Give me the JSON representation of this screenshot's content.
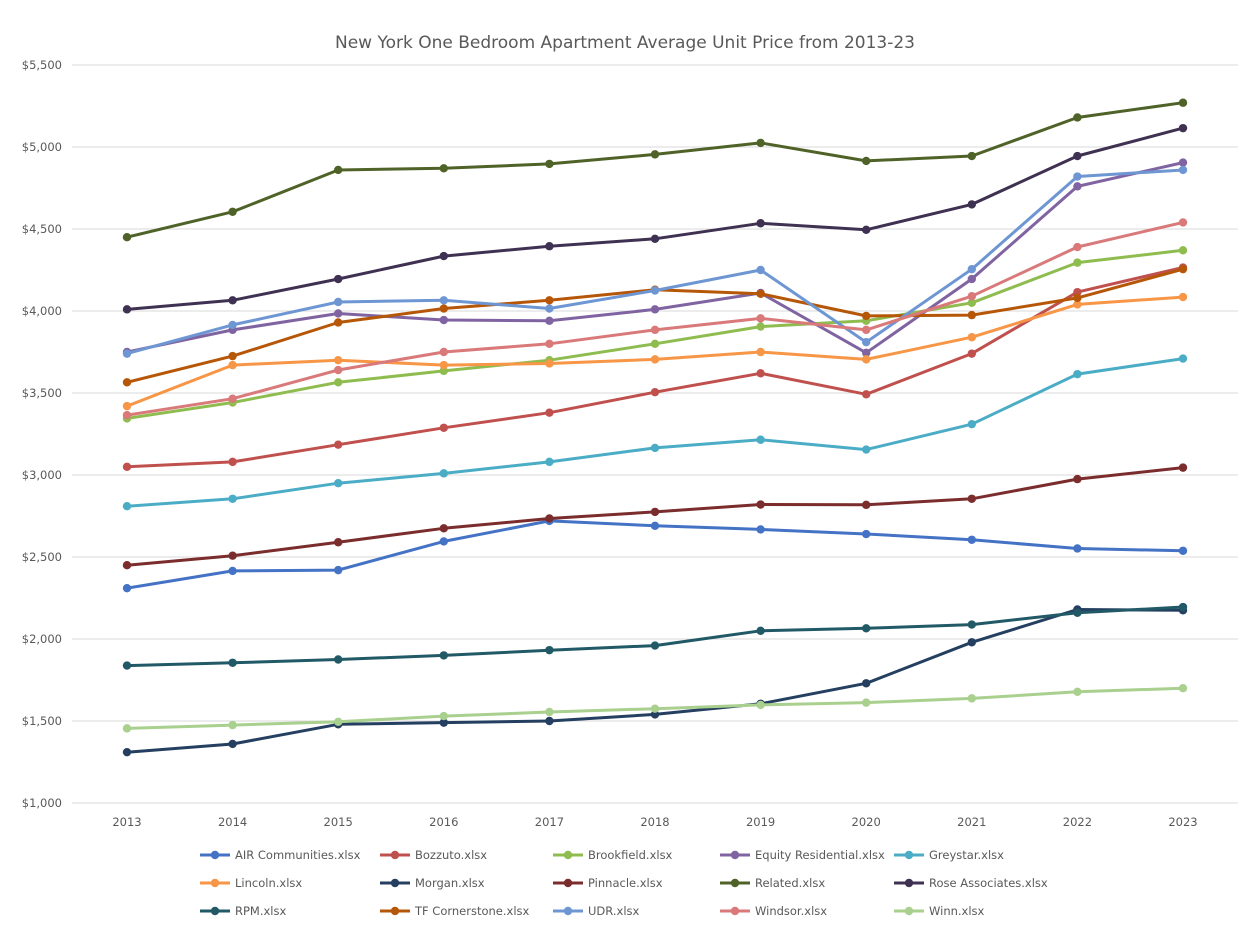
{
  "chart_data": {
    "type": "line",
    "title": "New York One Bedroom Apartment Average Unit Price from 2013-23",
    "xlabel": "",
    "ylabel": "",
    "x": [
      "2013",
      "2014",
      "2015",
      "2016",
      "2017",
      "2018",
      "2019",
      "2020",
      "2021",
      "2022",
      "2023"
    ],
    "ylim": [
      1000,
      5500
    ],
    "yticks": [
      1000,
      1500,
      2000,
      2500,
      3000,
      3500,
      4000,
      4500,
      5000,
      5500
    ],
    "ytick_labels": [
      "$1,000",
      "$1,500",
      "$2,000",
      "$2,500",
      "$3,000",
      "$3,500",
      "$4,000",
      "$4,500",
      "$5,000",
      "$5,500"
    ],
    "grid": true,
    "legend_position": "bottom",
    "series": [
      {
        "name": "AIR Communities.xlsx",
        "color": "#4472c4",
        "values": [
          2310,
          2415,
          2420,
          2595,
          2720,
          2690,
          2668,
          2640,
          2605,
          2552,
          2538
        ]
      },
      {
        "name": "Bozzuto.xlsx",
        "color": "#c0504d",
        "values": [
          3050,
          3080,
          3185,
          3288,
          3380,
          3505,
          3620,
          3492,
          3740,
          4115,
          4265
        ]
      },
      {
        "name": "Brookfield.xlsx",
        "color": "#8fbc4f",
        "values": [
          3345,
          3442,
          3565,
          3635,
          3700,
          3800,
          3905,
          3940,
          4050,
          4295,
          4370
        ]
      },
      {
        "name": "Equity Residential.xlsx",
        "color": "#8064a2",
        "values": [
          3750,
          3885,
          3985,
          3945,
          3940,
          4010,
          4110,
          3745,
          4195,
          4760,
          4905
        ]
      },
      {
        "name": "Greystar.xlsx",
        "color": "#4bacc6",
        "values": [
          2810,
          2855,
          2950,
          3010,
          3080,
          3165,
          3215,
          3155,
          3310,
          3615,
          3710
        ]
      },
      {
        "name": "Lincoln.xlsx",
        "color": "#f79646",
        "values": [
          3420,
          3670,
          3700,
          3670,
          3680,
          3705,
          3750,
          3705,
          3840,
          4040,
          4085
        ]
      },
      {
        "name": "Morgan.xlsx",
        "color": "#243f60",
        "values": [
          1310,
          1360,
          1480,
          1490,
          1500,
          1540,
          1605,
          1730,
          1980,
          2180,
          2175
        ]
      },
      {
        "name": "Pinnacle.xlsx",
        "color": "#7b2c2c",
        "values": [
          2450,
          2508,
          2590,
          2675,
          2735,
          2775,
          2820,
          2818,
          2855,
          2975,
          3045
        ]
      },
      {
        "name": "Related.xlsx",
        "color": "#4f6228",
        "values": [
          4450,
          4605,
          4860,
          4870,
          4897,
          4955,
          5025,
          4915,
          4945,
          5180,
          5270
        ]
      },
      {
        "name": "Rose Associates.xlsx",
        "color": "#3f3151",
        "values": [
          4010,
          4065,
          4195,
          4335,
          4395,
          4440,
          4535,
          4495,
          4650,
          4945,
          5115
        ]
      },
      {
        "name": "RPM.xlsx",
        "color": "#215967",
        "values": [
          1838,
          1855,
          1875,
          1900,
          1932,
          1960,
          2050,
          2065,
          2088,
          2160,
          2195
        ]
      },
      {
        "name": "TF Cornerstone.xlsx",
        "color": "#b65708",
        "values": [
          3565,
          3725,
          3930,
          4015,
          4065,
          4130,
          4105,
          3970,
          3975,
          4080,
          4255
        ]
      },
      {
        "name": "UDR.xlsx",
        "color": "#6d96d3",
        "values": [
          3740,
          3915,
          4055,
          4065,
          4015,
          4125,
          4250,
          3810,
          4255,
          4820,
          4860
        ]
      },
      {
        "name": "Windsor.xlsx",
        "color": "#d9797a",
        "values": [
          3365,
          3465,
          3640,
          3750,
          3800,
          3885,
          3955,
          3885,
          4090,
          4390,
          4540
        ]
      },
      {
        "name": "Winn.xlsx",
        "color": "#a9d08e",
        "values": [
          1455,
          1475,
          1495,
          1530,
          1555,
          1575,
          1598,
          1612,
          1638,
          1678,
          1700
        ]
      }
    ]
  }
}
